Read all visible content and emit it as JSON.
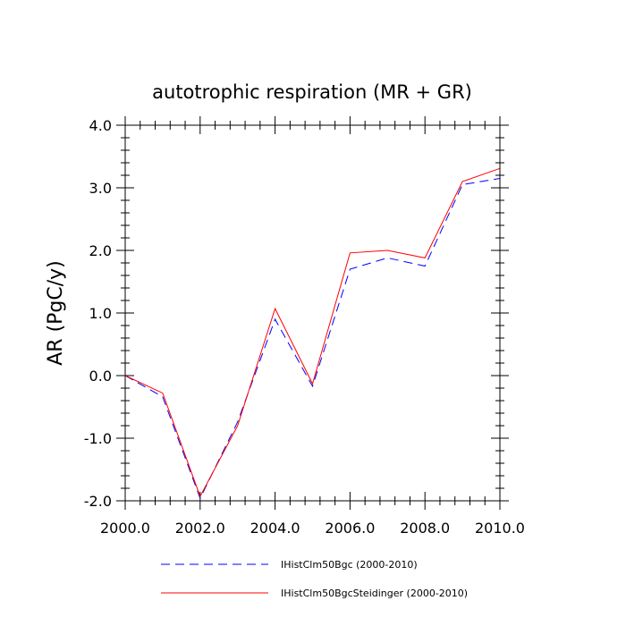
{
  "chart_data": {
    "type": "line",
    "title": "autotrophic respiration (MR + GR)",
    "xlabel": "",
    "ylabel": "AR  (PgC/y)",
    "xlim": [
      2000,
      2010
    ],
    "ylim": [
      -2.0,
      4.0
    ],
    "x_ticks": [
      "2000.0",
      "2002.0",
      "2004.0",
      "2006.0",
      "2008.0",
      "2010.0"
    ],
    "x_tick_values": [
      2000,
      2002,
      2004,
      2006,
      2008,
      2010
    ],
    "y_ticks": [
      "4.0",
      "3.0",
      "2.0",
      "1.0",
      "0.0",
      "-1.0",
      "-2.0"
    ],
    "y_tick_values": [
      4,
      3,
      2,
      1,
      0,
      -1,
      -2
    ],
    "grid": false,
    "legend_position": "bottom",
    "x": [
      2000,
      2001,
      2002,
      2003,
      2004,
      2005,
      2006,
      2007,
      2008,
      2009,
      2010
    ],
    "series": [
      {
        "name": "IHistClm50Bgc (2000-2010)",
        "color": "#0000ff",
        "style": "dashed",
        "values": [
          0.0,
          -0.34,
          -1.96,
          -0.74,
          0.9,
          -0.17,
          1.7,
          1.88,
          1.75,
          3.05,
          3.15
        ]
      },
      {
        "name": "IHistClm50BgcSteidinger (2000-2010)",
        "color": "#ff0000",
        "style": "solid",
        "values": [
          0.0,
          -0.28,
          -1.93,
          -0.8,
          1.07,
          -0.13,
          1.96,
          2.0,
          1.88,
          3.1,
          3.31
        ]
      }
    ]
  }
}
